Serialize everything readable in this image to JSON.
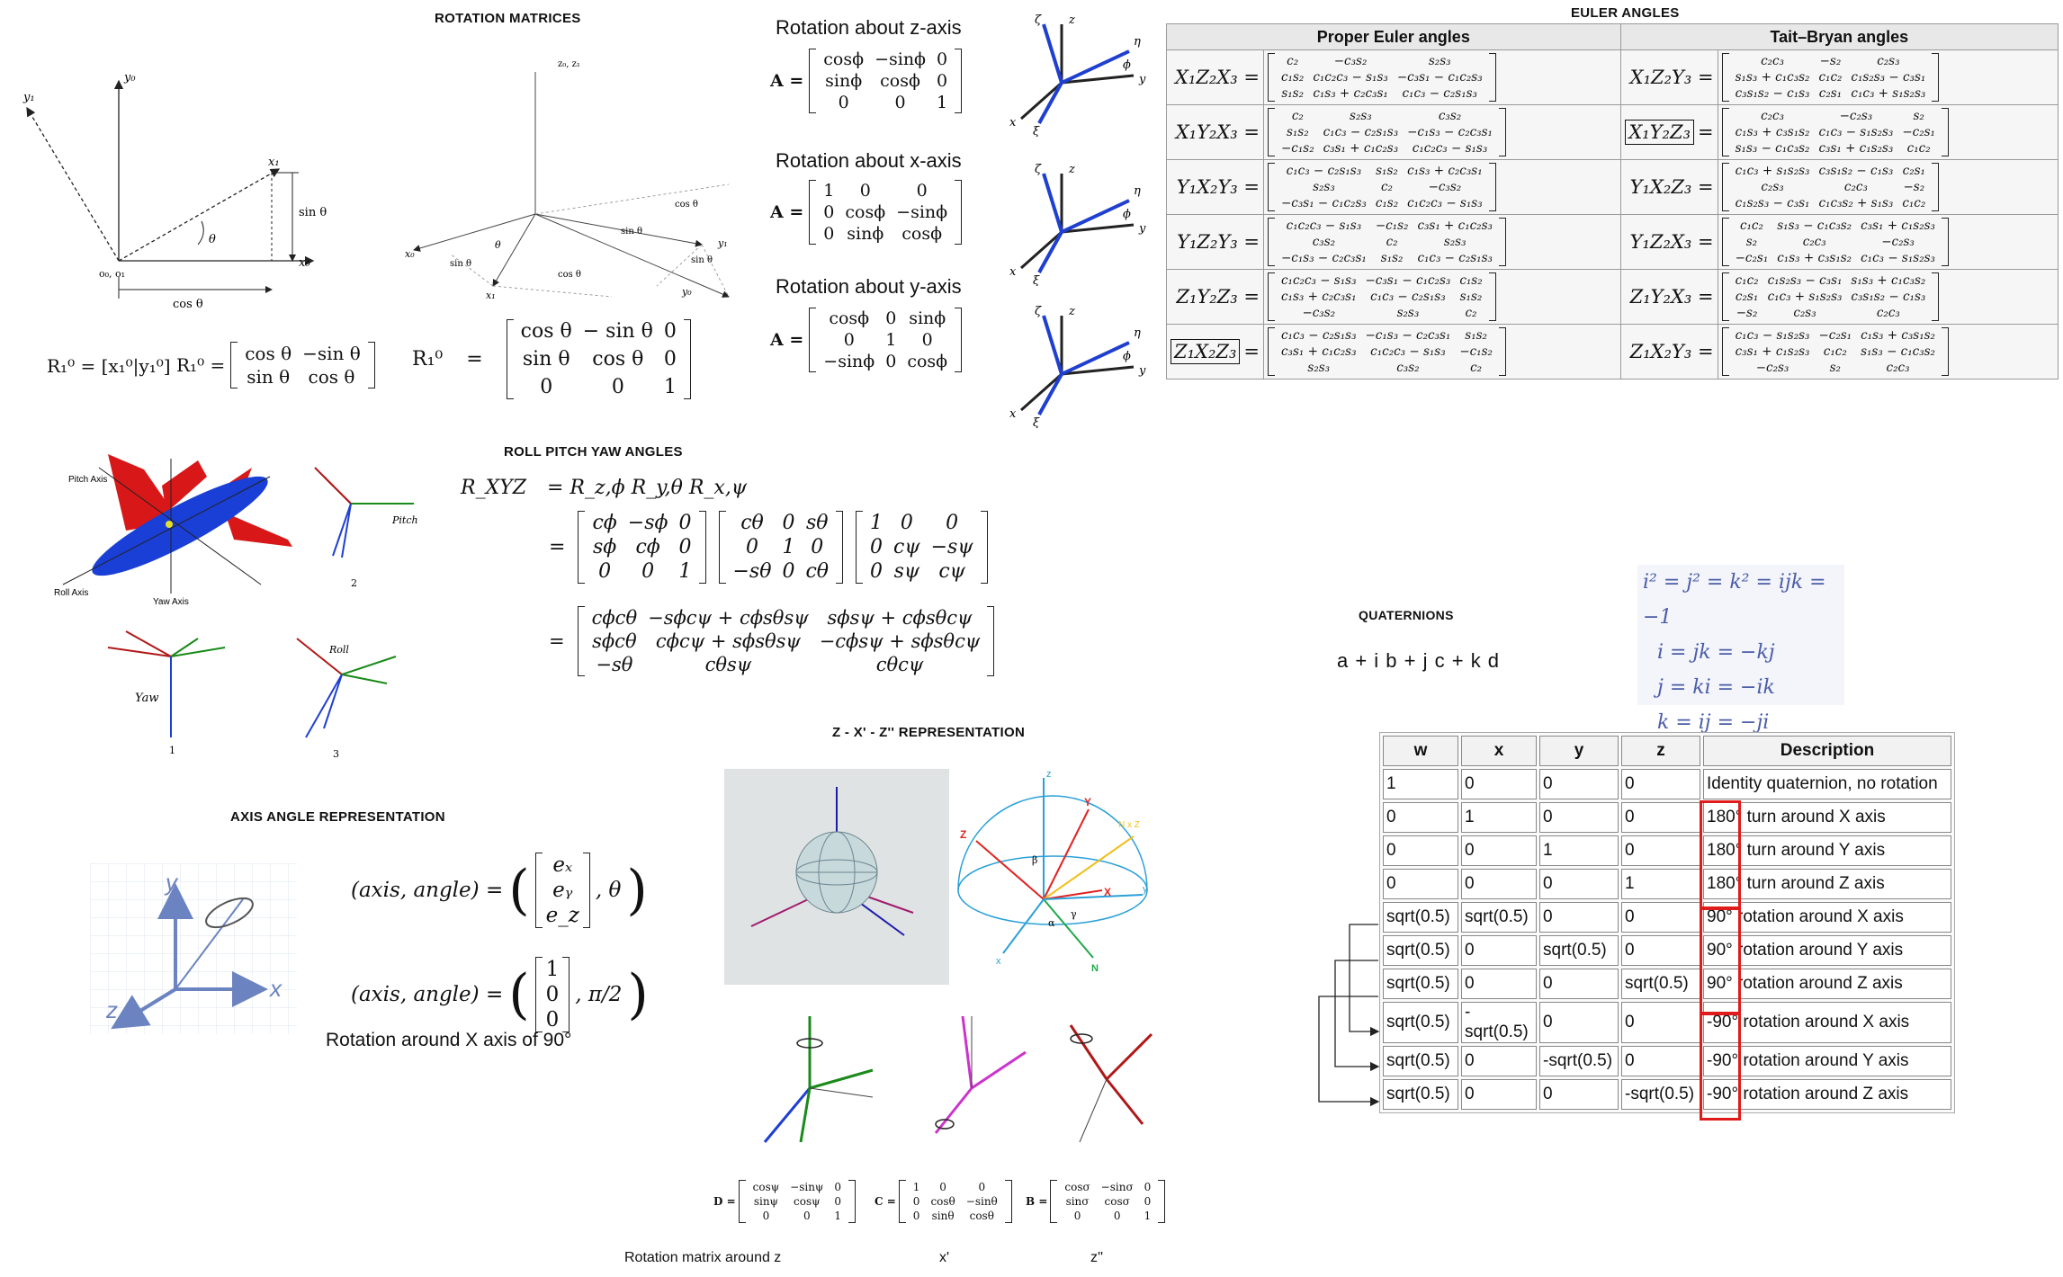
{
  "rotation_matrices": {
    "title": "ROTATION MATRICES",
    "diagram1": {
      "y1": "y₁",
      "y0": "y₀",
      "x1": "x₁",
      "x0": "x₀",
      "theta": "θ",
      "sin": "sin θ",
      "cos": "cos θ",
      "origin": "o₀, o₁"
    },
    "diagram2": {
      "z": "z₀, z₁",
      "cos1": "cos θ",
      "sin1": "sin θ",
      "theta": "θ",
      "x0": "x₀",
      "x1": "x₁",
      "y1": "y₁",
      "y0": "y₀",
      "sin2": "sin θ",
      "cos2": "cos θ",
      "sin3": "sin θ"
    },
    "eq1": "R₁⁰ = [x₁⁰|y₁⁰]",
    "eq2_lhs": "R₁⁰ =",
    "eq2": [
      "cos θ",
      "−sin θ",
      "sin θ",
      "cos θ"
    ],
    "eq3_lhs": "R₁⁰",
    "eq3_eq": "=",
    "eq3": [
      "cos θ",
      "− sin θ",
      "0",
      "sin θ",
      "cos θ",
      "0",
      "0",
      "0",
      "1"
    ]
  },
  "axis_rotations": [
    {
      "title": "Rotation about z-axis",
      "lhs": "A =",
      "m": [
        "cosϕ",
        "−sinϕ",
        "0",
        "sinϕ",
        "cosϕ",
        "0",
        "0",
        "0",
        "1"
      ]
    },
    {
      "title": "Rotation about x-axis",
      "lhs": "A =",
      "m": [
        "1",
        "0",
        "0",
        "0",
        "cosϕ",
        "−sinϕ",
        "0",
        "sinϕ",
        "cosϕ"
      ]
    },
    {
      "title": "Rotation about y-axis",
      "lhs": "A =",
      "m": [
        "cosϕ",
        "0",
        "sinϕ",
        "0",
        "1",
        "0",
        "−sinϕ",
        "0",
        "cosϕ"
      ]
    }
  ],
  "frame_labels": {
    "zeta": "ζ",
    "z": "z",
    "eta": "η",
    "phi": "ϕ",
    "y": "y",
    "x": "x",
    "xi": "ξ"
  },
  "rpy": {
    "title": "ROLL PITCH YAW ANGLES",
    "plane": {
      "pitch": "Pitch Axis",
      "roll": "Roll Axis",
      "yaw": "Yaw Axis"
    },
    "frames": {
      "pitch": "Pitch",
      "yaw": "Yaw",
      "roll": "Roll",
      "n1": "1",
      "n2": "2",
      "n3": "3"
    },
    "lhs": "R_XYZ",
    "row1": "=  R_z,ϕ R_y,θ R_x,ψ",
    "eq": "=",
    "m1": [
      "cϕ",
      "−sϕ",
      "0",
      "sϕ",
      "cϕ",
      "0",
      "0",
      "0",
      "1"
    ],
    "m2": [
      "cθ",
      "0",
      "sθ",
      "0",
      "1",
      "0",
      "−sθ",
      "0",
      "cθ"
    ],
    "m3": [
      "1",
      "0",
      "0",
      "0",
      "cψ",
      "−sψ",
      "0",
      "sψ",
      "cψ"
    ],
    "m4": [
      "cϕcθ",
      "−sϕcψ + cϕsθsψ",
      "sϕsψ + cϕsθcψ",
      "sϕcθ",
      "cϕcψ + sϕsθsψ",
      "−cϕsψ + sϕsθcψ",
      "−sθ",
      "cθsψ",
      "cθcψ"
    ]
  },
  "axis_angle": {
    "title": "AXIS ANGLE REPRESENTATION",
    "eq1_lhs": "(axis, angle) =",
    "eq1_vec": [
      "eₓ",
      "eᵧ",
      "e_z"
    ],
    "eq1_rest": ", θ",
    "eq2_lhs": "(axis, angle) =",
    "eq2_vec": [
      "1",
      "0",
      "0"
    ],
    "eq2_rest": ", π/2",
    "caption": "Rotation around X axis of 90°",
    "axes": {
      "y": "y",
      "x": "x",
      "z": "z"
    }
  },
  "zxz": {
    "title": "Z - X' - Z'' REPRESENTATION",
    "sphere_labels": {
      "z": "z",
      "Y": "Y",
      "NxZ": "N x Z",
      "Z": "Z",
      "beta": "β",
      "X": "X",
      "alpha": "α",
      "gamma": "γ",
      "x": "x",
      "y": "y",
      "N": "N"
    },
    "D": {
      "lhs": "D =",
      "m": [
        "cosψ",
        "−sinψ",
        "0",
        "sinψ",
        "cosψ",
        "0",
        "0",
        "0",
        "1"
      ]
    },
    "C": {
      "lhs": "C =",
      "m": [
        "1",
        "0",
        "0",
        "0",
        "cosθ",
        "−sinθ",
        "0",
        "sinθ",
        "cosθ"
      ]
    },
    "B": {
      "lhs": "B =",
      "m": [
        "cosσ",
        "−sinσ",
        "0",
        "sinσ",
        "cosσ",
        "0",
        "0",
        "0",
        "1"
      ]
    },
    "captions": [
      "Rotation matrix around z",
      "x'",
      "z''"
    ]
  },
  "euler": {
    "title": "EULER ANGLES",
    "headers": [
      "Proper Euler angles",
      "Tait–Bryan angles"
    ],
    "rows": [
      {
        "p_name": "X₁Z₂X₃ =",
        "p": [
          "c₂",
          "−c₃s₂",
          "s₂s₃",
          "c₁s₂",
          "c₁c₂c₃ − s₁s₃",
          "−c₃s₁ − c₁c₂s₃",
          "s₁s₂",
          "c₁s₃ + c₂c₃s₁",
          "c₁c₃ − c₂s₁s₃"
        ],
        "t_name": "X₁Z₂Y₃ =",
        "t": [
          "c₂c₃",
          "−s₂",
          "c₂s₃",
          "s₁s₃ + c₁c₃s₂",
          "c₁c₂",
          "c₁s₂s₃ − c₃s₁",
          "c₃s₁s₂ − c₁s₃",
          "c₂s₁",
          "c₁c₃ + s₁s₂s₃"
        ]
      },
      {
        "p_name": "X₁Y₂X₃ =",
        "p": [
          "c₂",
          "s₂s₃",
          "c₃s₂",
          "s₁s₂",
          "c₁c₃ − c₂s₁s₃",
          "−c₁s₃ − c₂c₃s₁",
          "−c₁s₂",
          "c₃s₁ + c₁c₂s₃",
          "c₁c₂c₃ − s₁s₃"
        ],
        "t_name": "X₁Y₂Z₃",
        "t_eq": "=",
        "t": [
          "c₂c₃",
          "−c₂s₃",
          "s₂",
          "c₁s₃ + c₃s₁s₂",
          "c₁c₃ − s₁s₂s₃",
          "−c₂s₁",
          "s₁s₃ − c₁c₃s₂",
          "c₃s₁ + c₁s₂s₃",
          "c₁c₂"
        ]
      },
      {
        "p_name": "Y₁X₂Y₃ =",
        "p": [
          "c₁c₃ − c₂s₁s₃",
          "s₁s₂",
          "c₁s₃ + c₂c₃s₁",
          "s₂s₃",
          "c₂",
          "−c₃s₂",
          "−c₃s₁ − c₁c₂s₃",
          "c₁s₂",
          "c₁c₂c₃ − s₁s₃"
        ],
        "t_name": "Y₁X₂Z₃ =",
        "t": [
          "c₁c₃ + s₁s₂s₃",
          "c₃s₁s₂ − c₁s₃",
          "c₂s₁",
          "c₂s₃",
          "c₂c₃",
          "−s₂",
          "c₁s₂s₃ − c₃s₁",
          "c₁c₃s₂ + s₁s₃",
          "c₁c₂"
        ]
      },
      {
        "p_name": "Y₁Z₂Y₃ =",
        "p": [
          "c₁c₂c₃ − s₁s₃",
          "−c₁s₂",
          "c₃s₁ + c₁c₂s₃",
          "c₃s₂",
          "c₂",
          "s₂s₃",
          "−c₁s₃ − c₂c₃s₁",
          "s₁s₂",
          "c₁c₃ − c₂s₁s₃"
        ],
        "t_name": "Y₁Z₂X₃ =",
        "t": [
          "c₁c₂",
          "s₁s₃ − c₁c₃s₂",
          "c₃s₁ + c₁s₂s₃",
          "s₂",
          "c₂c₃",
          "−c₂s₃",
          "−c₂s₁",
          "c₁s₃ + c₃s₁s₂",
          "c₁c₃ − s₁s₂s₃"
        ]
      },
      {
        "p_name": "Z₁Y₂Z₃ =",
        "p": [
          "c₁c₂c₃ − s₁s₃",
          "−c₃s₁ − c₁c₂s₃",
          "c₁s₂",
          "c₁s₃ + c₂c₃s₁",
          "c₁c₃ − c₂s₁s₃",
          "s₁s₂",
          "−c₃s₂",
          "s₂s₃",
          "c₂"
        ],
        "t_name": "Z₁Y₂X₃ =",
        "t": [
          "c₁c₂",
          "c₁s₂s₃ − c₃s₁",
          "s₁s₃ + c₁c₃s₂",
          "c₂s₁",
          "c₁c₃ + s₁s₂s₃",
          "c₃s₁s₂ − c₁s₃",
          "−s₂",
          "c₂s₃",
          "c₂c₃"
        ]
      },
      {
        "p_name": "Z₁X₂Z₃",
        "p_eq": "=",
        "p": [
          "c₁c₃ − c₂s₁s₃",
          "−c₁s₃ − c₂c₃s₁",
          "s₁s₂",
          "c₃s₁ + c₁c₂s₃",
          "c₁c₂c₃ − s₁s₃",
          "−c₁s₂",
          "s₂s₃",
          "c₃s₂",
          "c₂"
        ],
        "t_name": "Z₁X₂Y₃ =",
        "t": [
          "c₁c₃ − s₁s₂s₃",
          "−c₂s₁",
          "c₁s₃ + c₃s₁s₂",
          "c₃s₁ + c₁s₂s₃",
          "c₁c₂",
          "s₁s₃ − c₁c₃s₂",
          "−c₂s₃",
          "s₂",
          "c₂c₃"
        ]
      }
    ]
  },
  "quaternions": {
    "title": "QUATERNIONS",
    "form": "a + i b + j c + k d",
    "identities": [
      "i² = j² = k² = ijk = −1",
      "i = jk = −kj",
      "j = ki = −ik",
      "k = ij = −ji"
    ],
    "table": {
      "headers": [
        "w",
        "x",
        "y",
        "z",
        "Description"
      ],
      "rows": [
        [
          "1",
          "0",
          "0",
          "0",
          "Identity quaternion, no rotation"
        ],
        [
          "0",
          "1",
          "0",
          "0",
          "180° turn around X axis"
        ],
        [
          "0",
          "0",
          "1",
          "0",
          "180° turn around Y axis"
        ],
        [
          "0",
          "0",
          "0",
          "1",
          "180° turn around Z axis"
        ],
        [
          "sqrt(0.5)",
          "sqrt(0.5)",
          "0",
          "0",
          "90° rotation around X axis"
        ],
        [
          "sqrt(0.5)",
          "0",
          "sqrt(0.5)",
          "0",
          "90° rotation around Y axis"
        ],
        [
          "sqrt(0.5)",
          "0",
          "0",
          "sqrt(0.5)",
          "90° rotation around Z axis"
        ],
        [
          "sqrt(0.5)",
          "-sqrt(0.5)",
          "0",
          "0",
          "-90° rotation around X axis"
        ],
        [
          "sqrt(0.5)",
          "0",
          "-sqrt(0.5)",
          "0",
          "-90° rotation around Y axis"
        ],
        [
          "sqrt(0.5)",
          "0",
          "0",
          "-sqrt(0.5)",
          "-90° rotation around Z axis"
        ]
      ]
    }
  },
  "colors": {
    "red": "#e01b1b",
    "blue": "#1f3fd0",
    "green": "#1a8a1a",
    "magenta": "#cc33cc",
    "darkred": "#b01818",
    "plane_red": "#d81818",
    "plane_blue": "#1a3fd6",
    "axis_blue": "#6b83c0",
    "quat_text": "#4a5ca8"
  }
}
